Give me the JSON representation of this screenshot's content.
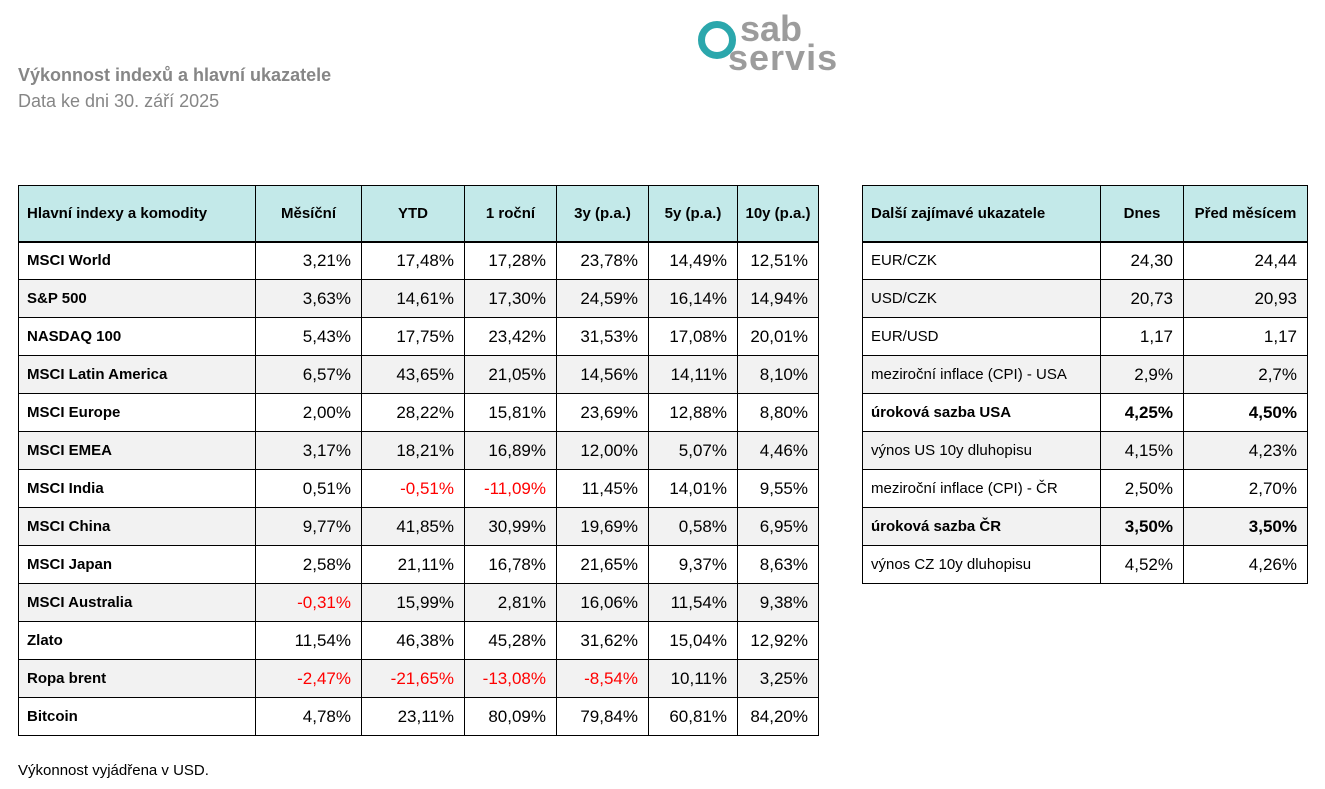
{
  "logo": {
    "text_top": "sab",
    "text_bottom": "servis"
  },
  "header": {
    "title": "Výkonnost indexů a hlavní ukazatele",
    "subtitle": "Data ke dni 30. září 2025"
  },
  "colors": {
    "accent_teal": "#2ba7ac",
    "table_header_bg": "#c3e9e9",
    "negative_value": "#ff0000",
    "alt_row_bg": "#f2f2f2",
    "title_gray": "#868686"
  },
  "main_table": {
    "header": [
      "Hlavní indexy a komodity",
      "Měsíční",
      "YTD",
      "1 roční",
      "3y (p.a.)",
      "5y (p.a.)",
      "10y (p.a.)"
    ],
    "rows": [
      {
        "label": "MSCI World",
        "values": [
          "3,21%",
          "17,48%",
          "17,28%",
          "23,78%",
          "14,49%",
          "12,51%"
        ],
        "bold": false
      },
      {
        "label": "S&P 500",
        "values": [
          "3,63%",
          "14,61%",
          "17,30%",
          "24,59%",
          "16,14%",
          "14,94%"
        ],
        "bold": false
      },
      {
        "label": "NASDAQ 100",
        "values": [
          "5,43%",
          "17,75%",
          "23,42%",
          "31,53%",
          "17,08%",
          "20,01%"
        ],
        "bold": false
      },
      {
        "label": "MSCI Latin America",
        "values": [
          "6,57%",
          "43,65%",
          "21,05%",
          "14,56%",
          "14,11%",
          "8,10%"
        ],
        "bold": false
      },
      {
        "label": "MSCI Europe",
        "values": [
          "2,00%",
          "28,22%",
          "15,81%",
          "23,69%",
          "12,88%",
          "8,80%"
        ],
        "bold": false
      },
      {
        "label": "MSCI EMEA",
        "values": [
          "3,17%",
          "18,21%",
          "16,89%",
          "12,00%",
          "5,07%",
          "4,46%"
        ],
        "bold": false
      },
      {
        "label": "MSCI India",
        "values": [
          "0,51%",
          "-0,51%",
          "-11,09%",
          "11,45%",
          "14,01%",
          "9,55%"
        ],
        "bold": false
      },
      {
        "label": "MSCI China",
        "values": [
          "9,77%",
          "41,85%",
          "30,99%",
          "19,69%",
          "0,58%",
          "6,95%"
        ],
        "bold": false
      },
      {
        "label": "MSCI Japan",
        "values": [
          "2,58%",
          "21,11%",
          "16,78%",
          "21,65%",
          "9,37%",
          "8,63%"
        ],
        "bold": false
      },
      {
        "label": "MSCI Australia",
        "values": [
          "-0,31%",
          "15,99%",
          "2,81%",
          "16,06%",
          "11,54%",
          "9,38%"
        ],
        "bold": false
      },
      {
        "label": "Zlato",
        "values": [
          "11,54%",
          "46,38%",
          "45,28%",
          "31,62%",
          "15,04%",
          "12,92%"
        ],
        "bold": false
      },
      {
        "label": "Ropa brent",
        "values": [
          "-2,47%",
          "-21,65%",
          "-13,08%",
          "-8,54%",
          "10,11%",
          "3,25%"
        ],
        "bold": false
      },
      {
        "label": "Bitcoin",
        "values": [
          "4,78%",
          "23,11%",
          "80,09%",
          "79,84%",
          "60,81%",
          "84,20%"
        ],
        "bold": false
      }
    ]
  },
  "side_table": {
    "header": [
      "Další zajímavé ukazatele",
      "Dnes",
      "Před měsícem"
    ],
    "rows": [
      {
        "label": "EUR/CZK",
        "values": [
          "24,30",
          "24,44"
        ],
        "bold": false
      },
      {
        "label": "USD/CZK",
        "values": [
          "20,73",
          "20,93"
        ],
        "bold": false
      },
      {
        "label": "EUR/USD",
        "values": [
          "1,17",
          "1,17"
        ],
        "bold": false
      },
      {
        "label": "meziroční inflace (CPI) - USA",
        "values": [
          "2,9%",
          "2,7%"
        ],
        "bold": false
      },
      {
        "label": "úroková sazba USA",
        "values": [
          "4,25%",
          "4,50%"
        ],
        "bold": true
      },
      {
        "label": "výnos US 10y dluhopisu",
        "values": [
          "4,15%",
          "4,23%"
        ],
        "bold": false
      },
      {
        "label": "meziroční inflace (CPI) - ČR",
        "values": [
          "2,50%",
          "2,70%"
        ],
        "bold": false
      },
      {
        "label": "úroková sazba ČR",
        "values": [
          "3,50%",
          "3,50%"
        ],
        "bold": true
      },
      {
        "label": "výnos CZ 10y dluhopisu",
        "values": [
          "4,52%",
          "4,26%"
        ],
        "bold": false
      }
    ]
  },
  "footer": {
    "note": "Výkonnost vyjádřena v USD."
  }
}
